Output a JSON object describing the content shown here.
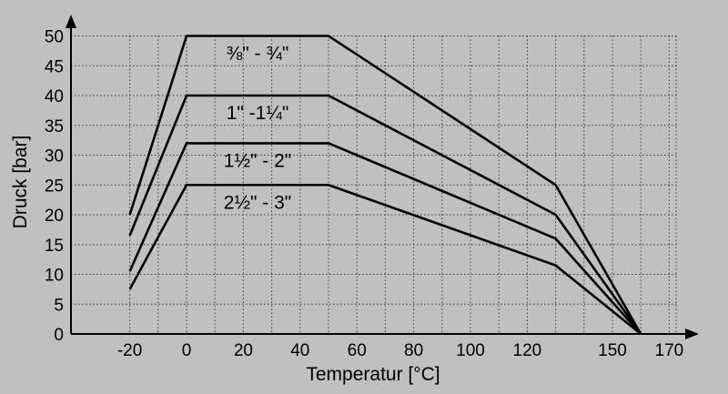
{
  "chart_data": {
    "type": "line",
    "xlabel": "Temperatur [°C]",
    "ylabel": "Druck [bar]",
    "xlim": [
      -30,
      170
    ],
    "ylim": [
      0,
      50
    ],
    "x_ticks": [
      -20,
      0,
      20,
      40,
      60,
      80,
      100,
      120,
      150,
      170
    ],
    "x_tick_labels": [
      "-20",
      "0",
      "20",
      "40",
      "60",
      "80",
      "100",
      "120",
      "150",
      "170"
    ],
    "y_ticks": [
      0,
      5,
      10,
      15,
      20,
      25,
      30,
      35,
      40,
      45,
      50
    ],
    "y_tick_labels": [
      "0",
      "5",
      "10",
      "15",
      "20",
      "25",
      "30",
      "35",
      "40",
      "45",
      "50"
    ],
    "grid": true,
    "series": [
      {
        "name": "⅜\" - ¾\"",
        "x": [
          -20,
          0,
          50,
          130,
          160
        ],
        "y": [
          20,
          50,
          50,
          25,
          0
        ]
      },
      {
        "name": "1\" -1¼\"",
        "x": [
          -20,
          0,
          50,
          130,
          160
        ],
        "y": [
          16.5,
          40,
          40,
          20,
          0
        ]
      },
      {
        "name": "1½\" - 2\"",
        "x": [
          -20,
          0,
          50,
          130,
          160
        ],
        "y": [
          10.5,
          32,
          32,
          16,
          0
        ]
      },
      {
        "name": "2½\" - 3\"",
        "x": [
          -20,
          0,
          50,
          130,
          160
        ],
        "y": [
          7.5,
          25,
          25,
          11.5,
          0
        ]
      }
    ]
  }
}
